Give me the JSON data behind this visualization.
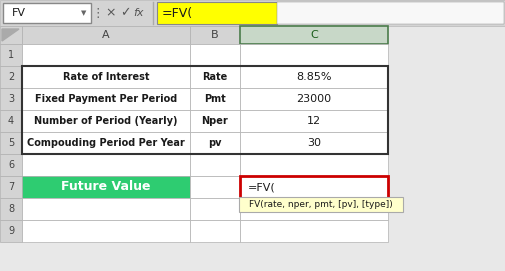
{
  "toolbar_label": "FV",
  "formula_bar_text": "=FV(",
  "table_rows": [
    {
      "label": "Rate of Interest",
      "abbr": "Rate",
      "value": "8.85%"
    },
    {
      "label": "Fixed Payment Per Period",
      "abbr": "Pmt",
      "value": "23000"
    },
    {
      "label": "Number of Period (Yearly)",
      "abbr": "Nper",
      "value": "12"
    },
    {
      "label": "Compouding Period Per Year",
      "abbr": "pv",
      "value": "30"
    }
  ],
  "future_value_label": "Future Value",
  "fv_formula": "=FV(",
  "fv_tooltip": "FV(rate, nper, pmt, [pv], [type])",
  "bg_color": "#e8e8e8",
  "toolbar_bg": "#d4d4d4",
  "formula_bar_yellow": "#ffff00",
  "cell_bg": "#ffffff",
  "header_bg": "#d4d4d4",
  "col_c_header_bg": "#c8d8c8",
  "border_color": "#b0b0b0",
  "green_cell_bg": "#2ecc71",
  "green_cell_text": "#ffffff",
  "fv_cell_border": "#cc0000",
  "tooltip_bg": "#ffffcc",
  "tooltip_border": "#aaaaaa"
}
